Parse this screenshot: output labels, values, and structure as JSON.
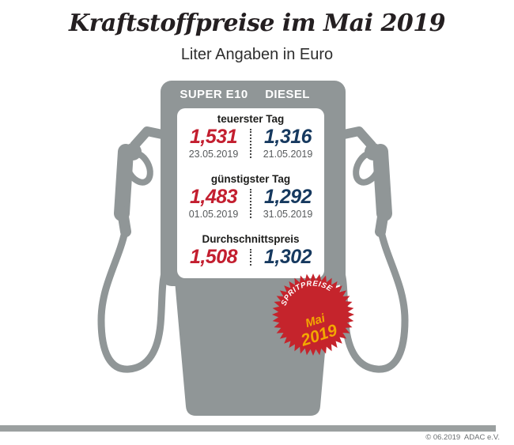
{
  "title": "Kraftstoffpreise im Mai 2019",
  "subtitle": "Liter Angaben in Euro",
  "pump": {
    "columns": [
      "SUPER E10",
      "DIESEL"
    ],
    "sections": [
      {
        "label": "teuerster Tag",
        "super_value": "1,531",
        "super_date": "23.05.2019",
        "diesel_value": "1,316",
        "diesel_date": "21.05.2019"
      },
      {
        "label": "günstigster Tag",
        "super_value": "1,483",
        "super_date": "01.05.2019",
        "diesel_value": "1,292",
        "diesel_date": "31.05.2019"
      },
      {
        "label": "Durchschnittspreis",
        "super_value": "1,508",
        "diesel_value": "1,302"
      }
    ]
  },
  "badge": {
    "line1": "SPRITPREISE",
    "line2": "Mai",
    "line3": "2019"
  },
  "footer": {
    "copyright": "© 06.2019  ADAC e.V."
  },
  "colors": {
    "pump_gray": "#909697",
    "price_red": "#c31e2f",
    "price_blue": "#16395f",
    "badge_red": "#c5242c",
    "badge_yellow": "#f3a800",
    "footer_bar": "#9ba0a0"
  },
  "chart_data": {
    "type": "table",
    "title": "Kraftstoffpreise im Mai 2019",
    "subtitle": "Liter Angaben in Euro",
    "unit": "Euro pro Liter",
    "columns": [
      "SUPER E10",
      "DIESEL"
    ],
    "rows": [
      {
        "label": "teuerster Tag",
        "values": [
          {
            "fuel": "SUPER E10",
            "price": 1.531,
            "date": "23.05.2019"
          },
          {
            "fuel": "DIESEL",
            "price": 1.316,
            "date": "21.05.2019"
          }
        ]
      },
      {
        "label": "günstigster Tag",
        "values": [
          {
            "fuel": "SUPER E10",
            "price": 1.483,
            "date": "01.05.2019"
          },
          {
            "fuel": "DIESEL",
            "price": 1.292,
            "date": "31.05.2019"
          }
        ]
      },
      {
        "label": "Durchschnittspreis",
        "values": [
          {
            "fuel": "SUPER E10",
            "price": 1.508
          },
          {
            "fuel": "DIESEL",
            "price": 1.302
          }
        ]
      }
    ],
    "source": "© 06.2019 ADAC e.V."
  }
}
